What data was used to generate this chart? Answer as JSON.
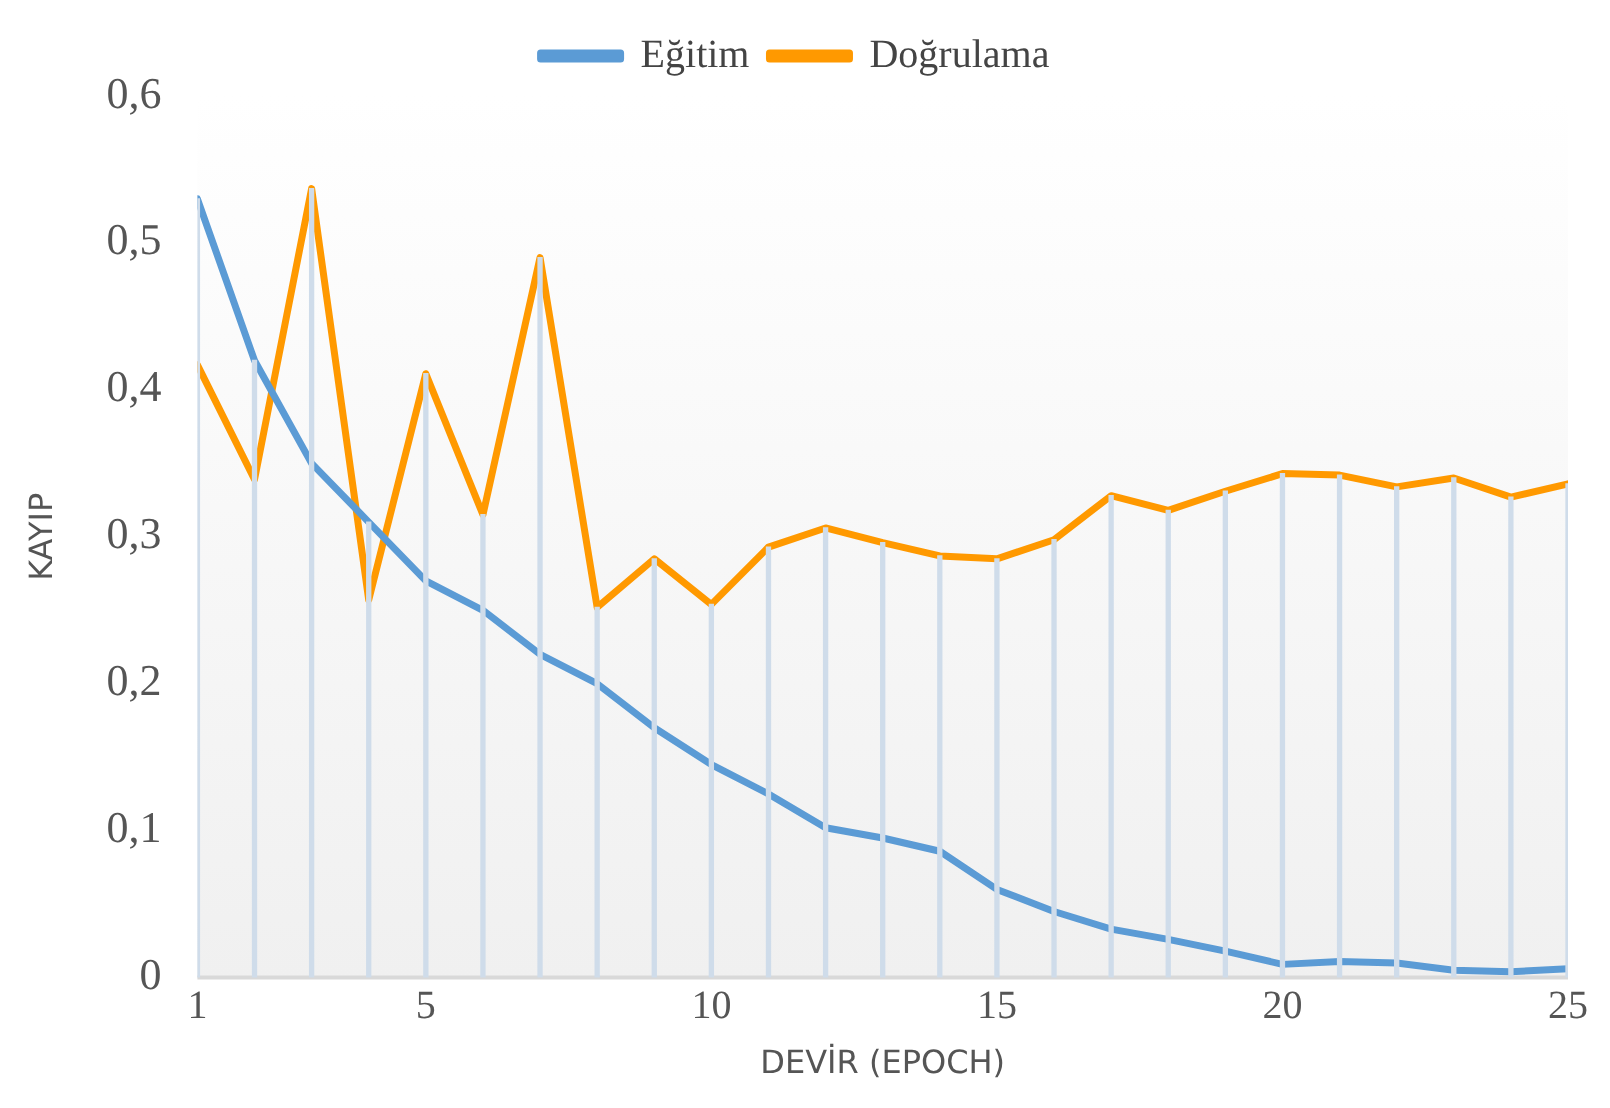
{
  "chart_data": {
    "type": "line",
    "xlabel": "DEVİR (EPOCH)",
    "ylabel": "KAYIP",
    "x": [
      1,
      2,
      3,
      4,
      5,
      6,
      7,
      8,
      9,
      10,
      11,
      12,
      13,
      14,
      15,
      16,
      17,
      18,
      19,
      20,
      21,
      22,
      23,
      24,
      25
    ],
    "xlim": [
      1,
      25
    ],
    "xticks": [
      1,
      5,
      10,
      15,
      20,
      25
    ],
    "ylim": [
      0,
      0.6
    ],
    "yticks": [
      {
        "value": 0,
        "label": "0"
      },
      {
        "value": 0.1,
        "label": "0,1"
      },
      {
        "value": 0.2,
        "label": "0,2"
      },
      {
        "value": 0.3,
        "label": "0,3"
      },
      {
        "value": 0.4,
        "label": "0,4"
      },
      {
        "value": 0.5,
        "label": "0,5"
      },
      {
        "value": 0.6,
        "label": "0,6"
      }
    ],
    "series": [
      {
        "type": "bar",
        "color": "#cfdcea",
        "values": [
          0.53,
          0.42,
          0.537,
          0.31,
          0.411,
          0.315,
          0.49,
          0.252,
          0.285,
          0.254,
          0.293,
          0.306,
          0.296,
          0.287,
          0.285,
          0.298,
          0.328,
          0.318,
          0.331,
          0.343,
          0.342,
          0.334,
          0.34,
          0.327,
          0.336
        ]
      },
      {
        "name": "Eğitim",
        "color": "#5b9bd5",
        "values": [
          0.53,
          0.42,
          0.35,
          0.31,
          0.27,
          0.25,
          0.22,
          0.2,
          0.17,
          0.145,
          0.125,
          0.102,
          0.095,
          0.086,
          0.06,
          0.045,
          0.033,
          0.026,
          0.018,
          0.009,
          0.011,
          0.01,
          0.005,
          0.004,
          0.006
        ]
      },
      {
        "name": "Doğrulama",
        "color": "#ff9900",
        "values": [
          0.417,
          0.339,
          0.537,
          0.257,
          0.411,
          0.315,
          0.49,
          0.252,
          0.285,
          0.254,
          0.293,
          0.306,
          0.296,
          0.287,
          0.285,
          0.298,
          0.328,
          0.318,
          0.331,
          0.343,
          0.342,
          0.334,
          0.34,
          0.327,
          0.336
        ]
      }
    ],
    "legend": "top",
    "grid": false,
    "marker": "none",
    "line_style": "solid"
  }
}
